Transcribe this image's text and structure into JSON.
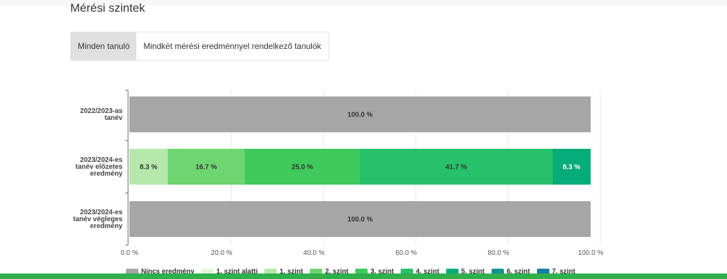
{
  "section": {
    "title": "Mérési szintek"
  },
  "filters": {
    "tabs": [
      {
        "label": "Minden tanuló",
        "active": true
      },
      {
        "label": "Mindkét mérési eredménnyel rendelkező tanulók",
        "active": false
      }
    ]
  },
  "chart_data": {
    "type": "bar",
    "orientation": "horizontal",
    "stacked": true,
    "title": "",
    "xlabel": "",
    "ylabel": "",
    "xlim": [
      0,
      100
    ],
    "x_ticks": [
      "0.0 %",
      "20.0 %",
      "40.0 %",
      "60.0 %",
      "80.0 %",
      "100.0 %"
    ],
    "grid": true,
    "legend_position": "bottom",
    "categories": [
      [
        "2022/2023-as",
        "tanév"
      ],
      [
        "2023/2024-es",
        "tanév előzetes",
        "eredmény"
      ],
      [
        "2023/2024-es",
        "tanév végleges",
        "eredmény"
      ]
    ],
    "series": [
      {
        "name": "Nincs eredmény",
        "color": "#a6a6a6",
        "values": [
          100.0,
          0,
          100.0
        ]
      },
      {
        "name": "1. szint alatti",
        "color": "#e2f5dc",
        "values": [
          0,
          0,
          0
        ]
      },
      {
        "name": "1. szint",
        "color": "#b5e8aa",
        "values": [
          0,
          8.3,
          0
        ]
      },
      {
        "name": "2. szint",
        "color": "#6dd670",
        "values": [
          0,
          16.7,
          0
        ]
      },
      {
        "name": "3. szint",
        "color": "#40c95c",
        "values": [
          0,
          25.0,
          0
        ]
      },
      {
        "name": "4. szint",
        "color": "#26c16a",
        "values": [
          0,
          41.7,
          0
        ]
      },
      {
        "name": "5. szint",
        "color": "#07ad78",
        "values": [
          0,
          8.3,
          0
        ]
      },
      {
        "name": "6. szint",
        "color": "#12928e",
        "values": [
          0,
          0,
          0
        ]
      },
      {
        "name": "7. szint",
        "color": "#127fa2",
        "values": [
          0,
          0,
          0
        ]
      }
    ]
  }
}
